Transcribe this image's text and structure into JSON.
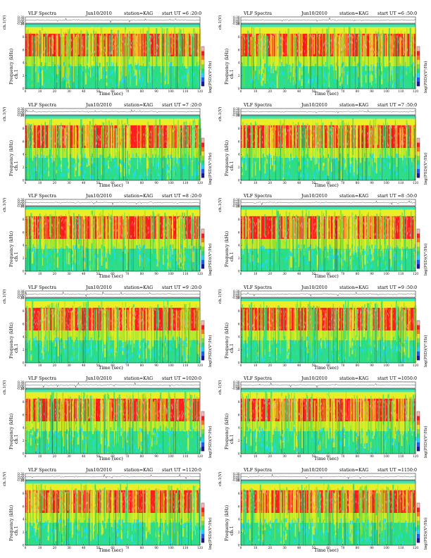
{
  "panel_header": {
    "title": "VLF Spectra",
    "station": "station=KAG",
    "start_prefix": "start  UT ="
  },
  "axis_labels": {
    "ch": "ch.1(V)",
    "ch1": "ch.1",
    "frequency": "Frequency  (kHz)",
    "colorbar": "log(PSD)(V²/Hz)",
    "time": "Time  (sec)"
  },
  "panels": [
    {
      "date": "Jun10/2010",
      "start_ut": "6 :20:0"
    },
    {
      "date": "Jun10/2010",
      "start_ut": "6 :50:0"
    },
    {
      "date": "Jun10/2010",
      "start_ut": "7 :20:0"
    },
    {
      "date": "Jun10/2010",
      "start_ut": "7 :50:0"
    },
    {
      "date": "Jun10/2010",
      "start_ut": "8 :20:0"
    },
    {
      "date": "Jun10/2010",
      "start_ut": "8 :50:0"
    },
    {
      "date": "Jun10/2010",
      "start_ut": "9 :20:0"
    },
    {
      "date": "Jun10/2010",
      "start_ut": "9 :50:0"
    },
    {
      "date": "Jun10/2010",
      "start_ut": "1020:0"
    },
    {
      "date": "Jun10/2010",
      "start_ut": "1050:0"
    },
    {
      "date": "Jun10/2010",
      "start_ut": "1120:0"
    },
    {
      "date": "Jun10/2010",
      "start_ut": "1150:0"
    }
  ],
  "chart_data": {
    "type": "heatmap",
    "x": {
      "label": "Time  (sec)",
      "range": [
        0,
        120
      ],
      "ticks": [
        0,
        10,
        20,
        30,
        40,
        50,
        60,
        70,
        80,
        90,
        100,
        110,
        120
      ]
    },
    "y_spectrogram": {
      "label": "Frequency  (kHz)",
      "range": [
        0,
        10
      ],
      "ticks": [
        0,
        2,
        4,
        6,
        8,
        10
      ]
    },
    "y_waveform": {
      "label": "ch.1(V)",
      "range": [
        -0.3,
        0.3
      ],
      "tick_labels": [
        "0.30",
        "0.20",
        "0.00",
        "-0.30"
      ]
    },
    "colorbar": {
      "label": "log(PSD)(V²/Hz)",
      "colors": [
        "#1a1a9a",
        "#1f5fff",
        "#1fd9ff",
        "#23e07a",
        "#7fe23a",
        "#e9ee25",
        "#ff7a1a",
        "#ff1e1e",
        "#ffb8b8"
      ]
    },
    "colormap_bands": [
      {
        "freq_range": [
          9.5,
          10
        ],
        "level": "cyan-green"
      },
      {
        "freq_range": [
          8.5,
          9.5
        ],
        "level": "yellow"
      },
      {
        "freq_range": [
          5,
          8.5
        ],
        "level": "red"
      },
      {
        "freq_range": [
          3.5,
          5
        ],
        "level": "yellow-green"
      },
      {
        "freq_range": [
          0,
          3.5
        ],
        "level": "green-cyan"
      }
    ]
  }
}
